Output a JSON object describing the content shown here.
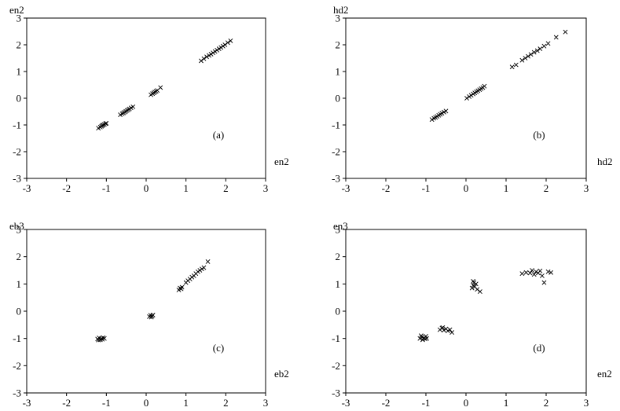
{
  "chart_data": [
    {
      "type": "scatter",
      "panel_label": "(a)",
      "ylabel": "en2",
      "xlabel": "en2",
      "xlim": [
        -3,
        3
      ],
      "ylim": [
        -3,
        3
      ],
      "xticks": [
        -3,
        -2,
        -1,
        0,
        1,
        2,
        3
      ],
      "yticks": [
        -3,
        -2,
        -1,
        0,
        1,
        2,
        3
      ],
      "marker": "x",
      "grid": false,
      "series": [
        {
          "points": [
            [
              -1.2,
              -1.12
            ],
            [
              -1.15,
              -1.08
            ],
            [
              -1.12,
              -1.05
            ],
            [
              -1.1,
              -1.02
            ],
            [
              -1.08,
              -1.0
            ],
            [
              -1.05,
              -0.98
            ],
            [
              -1.02,
              -0.95
            ],
            [
              -1.0,
              -0.94
            ],
            [
              -0.65,
              -0.62
            ],
            [
              -0.6,
              -0.58
            ],
            [
              -0.57,
              -0.55
            ],
            [
              -0.54,
              -0.52
            ],
            [
              -0.51,
              -0.49
            ],
            [
              -0.48,
              -0.46
            ],
            [
              -0.45,
              -0.43
            ],
            [
              -0.42,
              -0.4
            ],
            [
              -0.38,
              -0.36
            ],
            [
              -0.33,
              -0.32
            ],
            [
              0.12,
              0.13
            ],
            [
              0.16,
              0.17
            ],
            [
              0.19,
              0.2
            ],
            [
              0.22,
              0.23
            ],
            [
              0.25,
              0.26
            ],
            [
              0.28,
              0.29
            ],
            [
              0.36,
              0.4
            ],
            [
              1.38,
              1.4
            ],
            [
              1.45,
              1.48
            ],
            [
              1.52,
              1.55
            ],
            [
              1.58,
              1.6
            ],
            [
              1.63,
              1.65
            ],
            [
              1.68,
              1.7
            ],
            [
              1.73,
              1.75
            ],
            [
              1.78,
              1.8
            ],
            [
              1.83,
              1.85
            ],
            [
              1.88,
              1.9
            ],
            [
              1.93,
              1.95
            ],
            [
              1.98,
              2.0
            ],
            [
              2.05,
              2.08
            ],
            [
              2.12,
              2.15
            ]
          ]
        }
      ]
    },
    {
      "type": "scatter",
      "panel_label": "(b)",
      "ylabel": "hd2",
      "xlabel": "hd2",
      "xlim": [
        -3,
        3
      ],
      "ylim": [
        -3,
        3
      ],
      "xticks": [
        -3,
        -2,
        -1,
        0,
        1,
        2,
        3
      ],
      "yticks": [
        -3,
        -2,
        -1,
        0,
        1,
        2,
        3
      ],
      "marker": "x",
      "grid": false,
      "series": [
        {
          "points": [
            [
              -0.85,
              -0.8
            ],
            [
              -0.8,
              -0.75
            ],
            [
              -0.76,
              -0.72
            ],
            [
              -0.72,
              -0.68
            ],
            [
              -0.68,
              -0.64
            ],
            [
              -0.64,
              -0.6
            ],
            [
              -0.6,
              -0.56
            ],
            [
              -0.55,
              -0.52
            ],
            [
              -0.5,
              -0.48
            ],
            [
              0.02,
              0.0
            ],
            [
              0.08,
              0.06
            ],
            [
              0.13,
              0.11
            ],
            [
              0.18,
              0.16
            ],
            [
              0.22,
              0.2
            ],
            [
              0.26,
              0.24
            ],
            [
              0.3,
              0.28
            ],
            [
              0.34,
              0.32
            ],
            [
              0.38,
              0.36
            ],
            [
              0.42,
              0.4
            ],
            [
              0.46,
              0.45
            ],
            [
              1.15,
              1.17
            ],
            [
              1.25,
              1.25
            ],
            [
              1.4,
              1.42
            ],
            [
              1.48,
              1.5
            ],
            [
              1.55,
              1.57
            ],
            [
              1.62,
              1.64
            ],
            [
              1.7,
              1.72
            ],
            [
              1.78,
              1.78
            ],
            [
              1.85,
              1.85
            ],
            [
              1.95,
              1.95
            ],
            [
              2.05,
              2.05
            ],
            [
              2.25,
              2.28
            ],
            [
              2.48,
              2.48
            ]
          ]
        }
      ]
    },
    {
      "type": "scatter",
      "panel_label": "(c)",
      "ylabel": "eb3",
      "xlabel": "eb2",
      "xlim": [
        -3,
        3
      ],
      "ylim": [
        -3,
        3
      ],
      "xticks": [
        -3,
        -2,
        -1,
        0,
        1,
        2,
        3
      ],
      "yticks": [
        -3,
        -2,
        -1,
        0,
        1,
        2,
        3
      ],
      "marker": "x",
      "grid": false,
      "series": [
        {
          "points": [
            [
              -1.22,
              -1.02
            ],
            [
              -1.18,
              -0.98
            ],
            [
              -1.15,
              -1.05
            ],
            [
              -1.12,
              -1.0
            ],
            [
              -1.1,
              -1.03
            ],
            [
              -1.08,
              -0.97
            ],
            [
              -1.2,
              -1.06
            ],
            [
              -1.05,
              -1.0
            ],
            [
              0.08,
              -0.2
            ],
            [
              0.11,
              -0.15
            ],
            [
              0.13,
              -0.22
            ],
            [
              0.15,
              -0.18
            ],
            [
              0.17,
              -0.14
            ],
            [
              0.82,
              0.78
            ],
            [
              0.85,
              0.85
            ],
            [
              0.88,
              0.82
            ],
            [
              0.9,
              0.88
            ],
            [
              1.0,
              1.05
            ],
            [
              1.05,
              1.12
            ],
            [
              1.1,
              1.18
            ],
            [
              1.15,
              1.25
            ],
            [
              1.2,
              1.3
            ],
            [
              1.25,
              1.38
            ],
            [
              1.3,
              1.45
            ],
            [
              1.35,
              1.5
            ],
            [
              1.4,
              1.55
            ],
            [
              1.45,
              1.6
            ],
            [
              1.55,
              1.82
            ]
          ]
        }
      ]
    },
    {
      "type": "scatter",
      "panel_label": "(d)",
      "ylabel": "en3",
      "xlabel": "en2",
      "xlim": [
        -3,
        3
      ],
      "ylim": [
        -3,
        3
      ],
      "xticks": [
        -3,
        -2,
        -1,
        0,
        1,
        2,
        3
      ],
      "yticks": [
        -3,
        -2,
        -1,
        0,
        1,
        2,
        3
      ],
      "marker": "x",
      "grid": false,
      "series": [
        {
          "points": [
            [
              -1.15,
              -1.0
            ],
            [
              -1.1,
              -0.95
            ],
            [
              -1.08,
              -1.05
            ],
            [
              -1.05,
              -0.98
            ],
            [
              -1.02,
              -1.02
            ],
            [
              -1.0,
              -0.92
            ],
            [
              -0.98,
              -1.0
            ],
            [
              -1.12,
              -0.9
            ],
            [
              -0.65,
              -0.68
            ],
            [
              -0.6,
              -0.62
            ],
            [
              -0.55,
              -0.7
            ],
            [
              -0.5,
              -0.65
            ],
            [
              -0.45,
              -0.72
            ],
            [
              -0.4,
              -0.68
            ],
            [
              -0.35,
              -0.78
            ],
            [
              -0.58,
              -0.6
            ],
            [
              0.15,
              0.85
            ],
            [
              0.18,
              0.95
            ],
            [
              0.2,
              1.05
            ],
            [
              0.22,
              0.9
            ],
            [
              0.25,
              1.0
            ],
            [
              0.18,
              1.1
            ],
            [
              0.28,
              0.8
            ],
            [
              0.35,
              0.72
            ],
            [
              1.4,
              1.38
            ],
            [
              1.5,
              1.42
            ],
            [
              1.6,
              1.4
            ],
            [
              1.65,
              1.5
            ],
            [
              1.7,
              1.35
            ],
            [
              1.75,
              1.45
            ],
            [
              1.8,
              1.4
            ],
            [
              1.85,
              1.48
            ],
            [
              1.9,
              1.3
            ],
            [
              1.95,
              1.05
            ],
            [
              2.05,
              1.45
            ],
            [
              2.12,
              1.42
            ]
          ]
        }
      ]
    }
  ]
}
